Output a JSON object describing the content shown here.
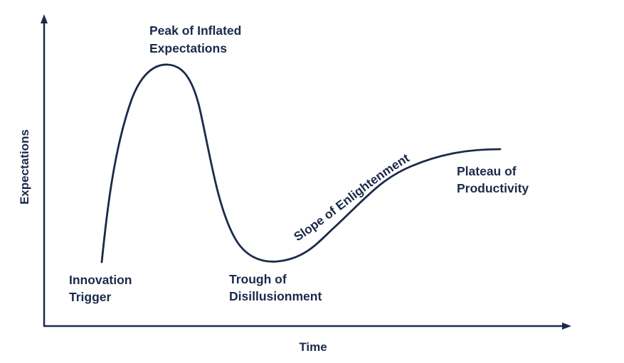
{
  "colors": {
    "ink": "#1b2a4a",
    "background": "#ffffff"
  },
  "axes": {
    "x_label": "Time",
    "y_label": "Expectations"
  },
  "phases": {
    "innovation_trigger": [
      "Innovation",
      "Trigger"
    ],
    "peak": [
      "Peak of Inflated",
      "Expectations"
    ],
    "trough": [
      "Trough of",
      "Disillusionment"
    ],
    "slope": "Slope of Enlightenment",
    "plateau": [
      "Plateau of",
      "Productivity"
    ]
  }
}
